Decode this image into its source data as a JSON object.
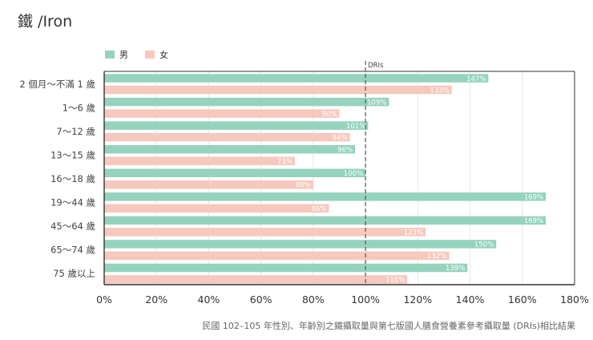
{
  "title": "鐵 /Iron",
  "source_note": "民國 102–105 年性別、年齡別之鐵攝取量與第七版國人膳食營養素參考攝取量 (DRIs)相比結果",
  "colors": {
    "male": "#95d3be",
    "female": "#f7c8bd",
    "axis": "#333333",
    "grid": "#e6e6e6",
    "dri": "#555555",
    "label": "#ffffff"
  },
  "chart_data": {
    "type": "bar",
    "orientation": "horizontal",
    "title": "鐵 /Iron",
    "categories": [
      "2 個月～不滿 1 歲",
      "1～6 歲",
      "7～12 歲",
      "13～15 歲",
      "16～18 歲",
      "19～44 歲",
      "45～64 歲",
      "65～74 歲",
      "75 歲以上"
    ],
    "series": [
      {
        "name": "男",
        "values": [
          147,
          109,
          101,
          96,
          100,
          169,
          169,
          150,
          139
        ]
      },
      {
        "name": "女",
        "values": [
          133,
          90,
          94,
          73,
          80,
          86,
          123,
          132,
          116
        ]
      }
    ],
    "value_labels": {
      "男": [
        "147%",
        "109%",
        "101%",
        "96%",
        "100%",
        "169%",
        "169%",
        "150%",
        "139%"
      ],
      "女": [
        "133%",
        "90%",
        "94%",
        "73%",
        "80%",
        "86%",
        "123%",
        "132%",
        "116%"
      ]
    },
    "xlim": [
      0,
      180
    ],
    "xticks": [
      0,
      20,
      40,
      60,
      80,
      100,
      120,
      140,
      160,
      180
    ],
    "xtick_labels": [
      "0%",
      "20%",
      "40%",
      "60%",
      "80%",
      "100%",
      "120%",
      "140%",
      "160%",
      "180%"
    ],
    "reference_line": {
      "value": 100,
      "label": "DRIs"
    },
    "legend": {
      "position": "top-left",
      "entries": [
        "男",
        "女"
      ]
    },
    "grid": true
  }
}
